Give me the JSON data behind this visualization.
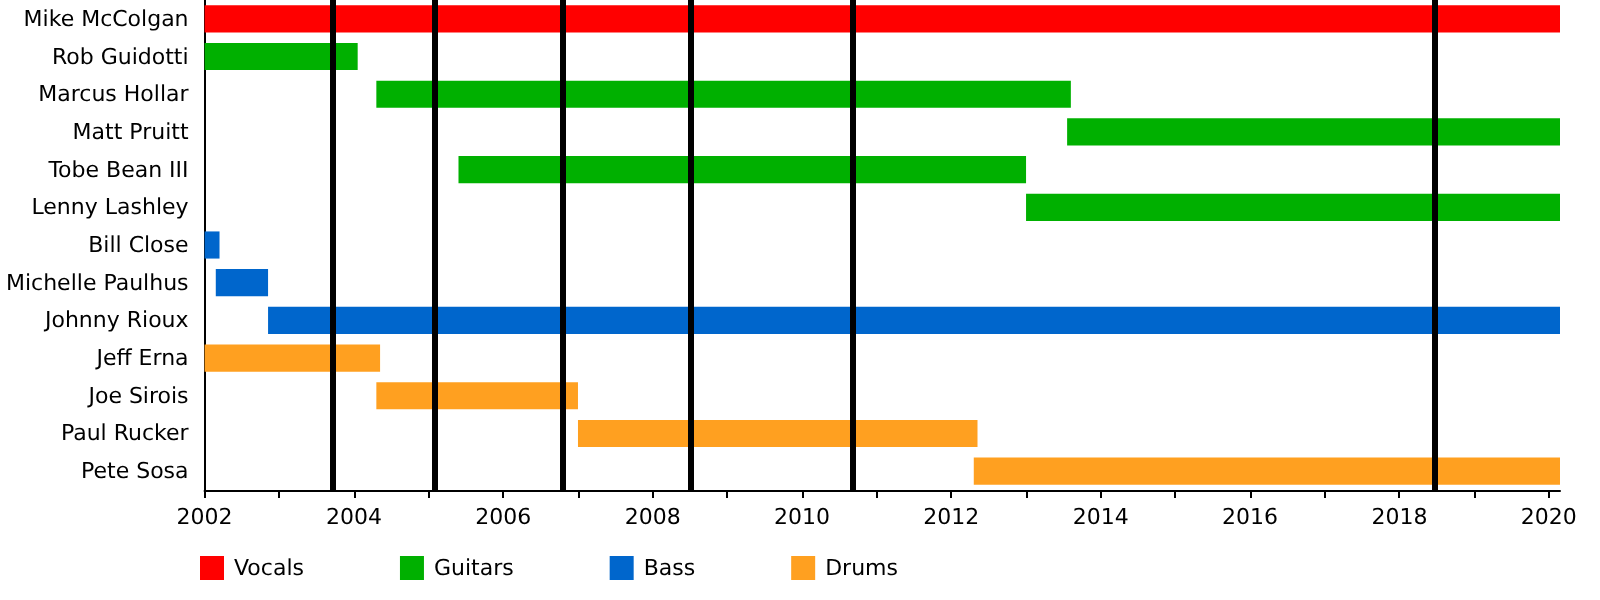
{
  "chart_data": {
    "type": "bar",
    "orientation": "horizontal",
    "categories": [
      "Mike McColgan",
      "Rob Guidotti",
      "Marcus Hollar",
      "Matt Pruitt",
      "Tobe Bean III",
      "Lenny Lashley",
      "Bill Close",
      "Michelle Paulhus",
      "Johnny Rioux",
      "Jeff Erna",
      "Joe Sirois",
      "Paul Rucker",
      "Pete Sosa"
    ],
    "series": [
      {
        "name": "Vocals",
        "color": "#ff0000",
        "base": [
          2002,
          null,
          null,
          null,
          null,
          null,
          null,
          null,
          null,
          null,
          null,
          null,
          null
        ],
        "values": [
          18.15,
          null,
          null,
          null,
          null,
          null,
          null,
          null,
          null,
          null,
          null,
          null,
          null
        ]
      },
      {
        "name": "Guitars",
        "color": "#00b000",
        "base": [
          null,
          2002,
          2004.3,
          2013.55,
          2005.4,
          2013.0,
          null,
          null,
          null,
          null,
          null,
          null,
          null
        ],
        "values": [
          null,
          2.05,
          9.3,
          6.6,
          7.6,
          7.15,
          null,
          null,
          null,
          null,
          null,
          null,
          null
        ]
      },
      {
        "name": "Bass",
        "color": "#0066cc",
        "base": [
          null,
          null,
          null,
          null,
          null,
          null,
          2002,
          2002.15,
          2002.85,
          null,
          null,
          null,
          null
        ],
        "values": [
          null,
          null,
          null,
          null,
          null,
          null,
          0.2,
          0.7,
          17.3,
          null,
          null,
          null,
          null
        ]
      },
      {
        "name": "Drums",
        "color": "#ffa020",
        "base": [
          null,
          null,
          null,
          null,
          null,
          null,
          null,
          null,
          null,
          2002,
          2004.3,
          2007.0,
          2012.3
        ],
        "values": [
          null,
          null,
          null,
          null,
          null,
          null,
          null,
          null,
          null,
          2.35,
          2.7,
          5.35,
          7.85
        ]
      }
    ],
    "xlim": [
      2002,
      2020.15
    ],
    "xticks": [
      2002,
      {
        "value": 2003,
        "label": null
      },
      2004,
      {
        "value": 2005,
        "label": null
      },
      2006,
      {
        "value": 2007,
        "label": null
      },
      2008,
      {
        "value": 2009,
        "label": null
      },
      2010,
      {
        "value": 2011,
        "label": null
      },
      2012,
      {
        "value": 2013,
        "label": null
      },
      2014,
      {
        "value": 2015,
        "label": null
      },
      2016,
      {
        "value": 2017,
        "label": null
      },
      2018,
      {
        "value": 2019,
        "label": null
      },
      2020
    ],
    "ref_lines": [
      {
        "axis": "x",
        "value": 2003.7,
        "color": "#000000"
      },
      {
        "axis": "x",
        "value": 2005.07,
        "color": "#000000"
      },
      {
        "axis": "x",
        "value": 2006.8,
        "color": "#000000"
      },
      {
        "axis": "x",
        "value": 2008.5,
        "color": "#000000"
      },
      {
        "axis": "x",
        "value": 2010.67,
        "color": "#000000"
      },
      {
        "axis": "x",
        "value": 2018.48,
        "color": "#000000"
      }
    ],
    "grid": false,
    "legend": "bottom left"
  }
}
